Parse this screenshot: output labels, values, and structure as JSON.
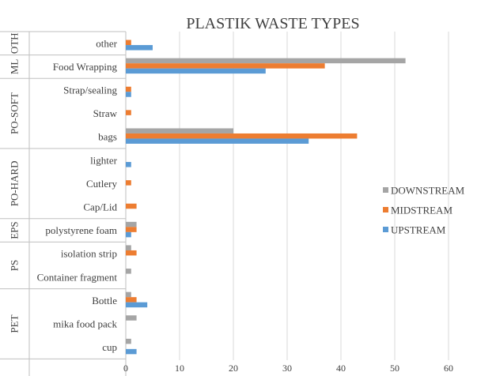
{
  "chart_data": {
    "type": "bar",
    "orientation": "horizontal",
    "title": "PLASTIK WASTE TYPES",
    "xlim": [
      0,
      60
    ],
    "x_ticks": [
      0,
      10,
      20,
      30,
      40,
      50,
      60
    ],
    "grid": true,
    "legend_position": "right",
    "groups": [
      {
        "label": "OTH",
        "categories": [
          "other"
        ]
      },
      {
        "label": "ML",
        "categories": [
          "Food Wrapping"
        ]
      },
      {
        "label": "PO-SOFT",
        "categories": [
          "Strap/sealing",
          "Straw",
          "bags"
        ]
      },
      {
        "label": "PO-HARD",
        "categories": [
          "lighter",
          "Cutlery",
          "Cap/Lid"
        ]
      },
      {
        "label": "EPS",
        "categories": [
          "polystyrene foam"
        ]
      },
      {
        "label": "PS",
        "categories": [
          "isolation strip",
          "Container fragment"
        ]
      },
      {
        "label": "PET",
        "categories": [
          "Bottle",
          "mika food pack",
          "cup"
        ]
      }
    ],
    "categories": [
      "other",
      "Food Wrapping",
      "Strap/sealing",
      "Straw",
      "bags",
      "lighter",
      "Cutlery",
      "Cap/Lid",
      "polystyrene foam",
      "isolation strip",
      "Container fragment",
      "Bottle",
      "mika food pack",
      "cup"
    ],
    "series": [
      {
        "name": "DOWNSTREAM",
        "color": "#a5a5a5",
        "values": [
          0,
          52,
          0,
          0,
          20,
          0,
          0,
          0,
          2,
          1,
          1,
          1,
          2,
          1
        ]
      },
      {
        "name": "MIDSTREAM",
        "color": "#ed7d31",
        "values": [
          1,
          37,
          1,
          1,
          43,
          0,
          1,
          2,
          2,
          2,
          0,
          2,
          0,
          0
        ]
      },
      {
        "name": "UPSTREAM",
        "color": "#5b9bd5",
        "values": [
          5,
          26,
          1,
          0,
          34,
          1,
          0,
          0,
          1,
          0,
          0,
          4,
          0,
          2
        ]
      }
    ]
  }
}
